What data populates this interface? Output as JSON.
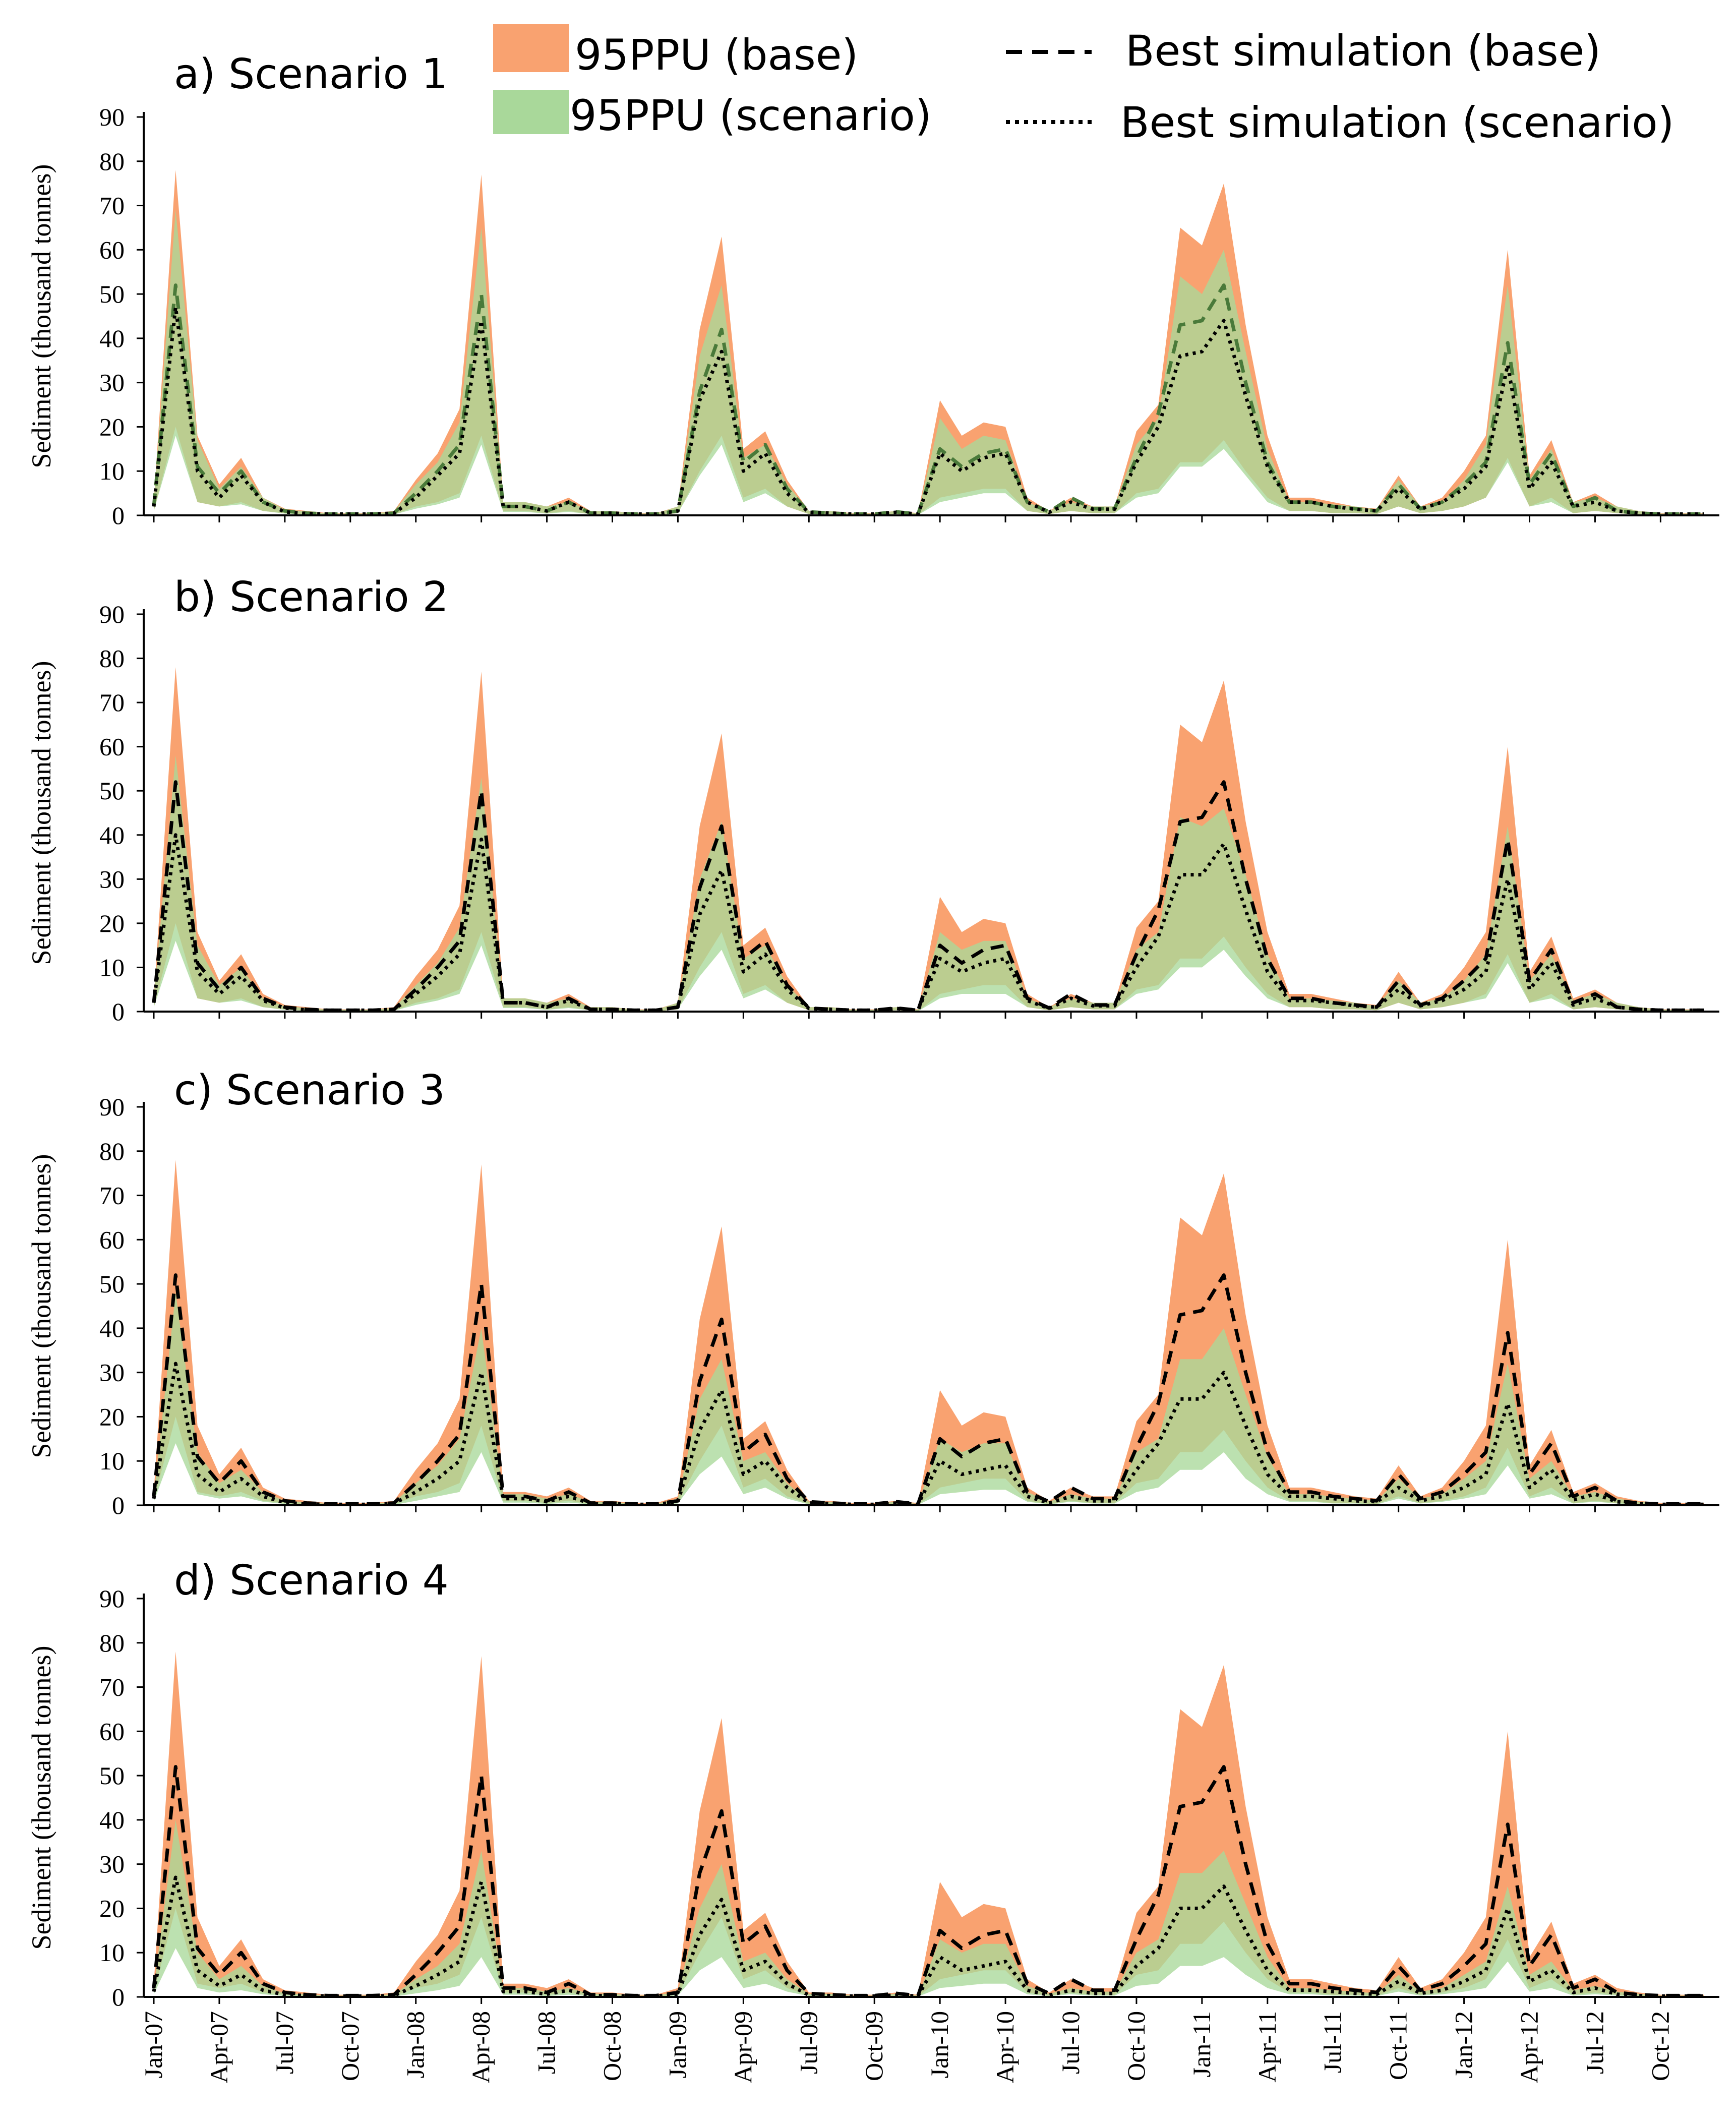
{
  "legend": {
    "ppu_base": "95PPU (base)",
    "ppu_scenario": "95PPU (scenario)",
    "best_base": "Best simulation (base)",
    "best_scenario": "Best simulation (scenario)"
  },
  "colors": {
    "ppu_base": "#f9a270",
    "ppu_scenario": "#a9d89a",
    "overlap": "#8da858",
    "line": "#000000",
    "best_base_scenario1": "#4a7a3a"
  },
  "chart_data": {
    "type": "area",
    "ylabel": "Sediment (thousand tonnes)",
    "ylim": [
      0,
      90
    ],
    "yticks": [
      0,
      10,
      20,
      30,
      40,
      50,
      60,
      70,
      80,
      90
    ],
    "months": 72,
    "start": "Jan-07",
    "xtick_labels": [
      "Jan-07",
      "Apr-07",
      "Jul-07",
      "Oct-07",
      "Jan-08",
      "Apr-08",
      "Jul-08",
      "Oct-08",
      "Jan-09",
      "Apr-09",
      "Jul-09",
      "Oct-09",
      "Jan-10",
      "Apr-10",
      "Jul-10",
      "Oct-10",
      "Jan-11",
      "Apr-11",
      "Jul-11",
      "Oct-11",
      "Jan-12",
      "Apr-12",
      "Jul-12",
      "Oct-12"
    ],
    "base": {
      "ppu_upper": [
        3,
        78,
        18,
        7,
        13,
        4,
        1.5,
        1,
        0.5,
        0.5,
        0.5,
        1,
        8,
        14,
        24,
        77,
        3,
        3,
        2,
        4,
        1,
        1,
        0.5,
        0.5,
        2,
        42,
        63,
        15,
        19,
        8,
        1,
        1,
        0.5,
        0.5,
        1,
        0.5,
        26,
        18,
        21,
        20,
        4,
        1,
        4,
        2,
        2,
        19,
        25,
        65,
        61,
        75,
        43,
        18,
        4,
        4,
        3,
        2,
        1.5,
        9,
        2,
        4,
        10,
        18,
        60,
        9,
        17,
        3,
        5,
        2,
        1,
        0.5,
        0.5,
        0.5
      ],
      "ppu_lower": [
        1,
        20,
        3,
        2,
        3,
        1,
        0.5,
        0.2,
        0.1,
        0.1,
        0.1,
        0.2,
        2,
        3,
        5,
        18,
        1,
        1,
        0.5,
        1,
        0.3,
        0.3,
        0.1,
        0.1,
        0.5,
        10,
        18,
        4,
        6,
        2,
        0.3,
        0.3,
        0.1,
        0.1,
        0.3,
        0.1,
        4,
        5,
        6,
        6,
        1,
        0.3,
        1,
        0.5,
        0.5,
        5,
        6,
        12,
        12,
        17,
        10,
        4,
        1,
        1,
        0.5,
        0.5,
        0.3,
        2,
        0.5,
        1,
        2,
        4,
        13,
        2,
        4,
        0.5,
        1,
        0.5,
        0.2,
        0.1,
        0.1,
        0.1
      ],
      "best": [
        2,
        52,
        11,
        5,
        10,
        3,
        1,
        0.5,
        0.3,
        0.3,
        0.3,
        0.5,
        5,
        10,
        16,
        50,
        2,
        2,
        1,
        3,
        0.5,
        0.5,
        0.3,
        0.3,
        1,
        28,
        42,
        12,
        16,
        6,
        0.8,
        0.5,
        0.3,
        0.3,
        0.8,
        0.3,
        15,
        11,
        14,
        15,
        3,
        0.8,
        4,
        1.5,
        1.5,
        13,
        23,
        43,
        44,
        52,
        30,
        12,
        3,
        3,
        2,
        1.5,
        1,
        7,
        1.5,
        3,
        7,
        12,
        39,
        7,
        14,
        2,
        4,
        1,
        0.5,
        0.3,
        0.3,
        0.3
      ]
    },
    "panels": [
      {
        "title": "a) Scenario 1",
        "scen_upper": [
          3,
          69,
          17,
          6,
          11,
          4,
          1.3,
          0.9,
          0.4,
          0.4,
          0.4,
          0.9,
          7,
          12,
          21,
          65,
          3,
          3,
          2,
          3,
          1,
          1,
          0.4,
          0.4,
          2,
          36,
          52,
          13,
          16,
          7,
          1,
          1,
          0.4,
          0.4,
          1,
          0.4,
          22,
          15,
          18,
          17,
          3,
          1,
          3,
          2,
          2,
          16,
          22,
          54,
          50,
          60,
          37,
          15,
          3,
          3,
          2.5,
          2,
          1.3,
          8,
          2,
          3,
          8,
          16,
          52,
          8,
          15,
          3,
          4,
          2,
          1,
          0.4,
          0.4,
          0.4
        ],
        "scen_lower": [
          1,
          18,
          3,
          2,
          2.5,
          1,
          0.4,
          0.2,
          0.1,
          0.1,
          0.1,
          0.2,
          1.5,
          2.5,
          4,
          16,
          0.8,
          0.8,
          0.4,
          0.8,
          0.3,
          0.3,
          0.1,
          0.1,
          0.5,
          9,
          16,
          3,
          5,
          2,
          0.3,
          0.3,
          0.1,
          0.1,
          0.3,
          0.1,
          3,
          4,
          5,
          5,
          1,
          0.3,
          1,
          0.5,
          0.5,
          4,
          5,
          11,
          11,
          15,
          9,
          3,
          1,
          1,
          0.5,
          0.5,
          0.3,
          2,
          0.5,
          1,
          2,
          4,
          12,
          2,
          3,
          0.5,
          1,
          0.5,
          0.2,
          0.1,
          0.1,
          0.1
        ],
        "best_scenario": [
          2,
          47,
          10,
          4,
          9,
          3,
          0.8,
          0.4,
          0.3,
          0.3,
          0.3,
          0.5,
          4,
          9,
          14,
          44,
          2,
          2,
          1,
          3,
          0.5,
          0.5,
          0.3,
          0.3,
          1,
          26,
          37,
          10,
          14,
          5,
          0.7,
          0.5,
          0.3,
          0.3,
          0.7,
          0.3,
          14,
          10,
          13,
          14,
          3,
          0.7,
          3,
          1.4,
          1.4,
          12,
          20,
          36,
          37,
          44,
          27,
          11,
          3,
          3,
          2,
          1.4,
          1,
          6,
          1.4,
          3,
          6,
          11,
          34,
          6,
          12,
          2,
          3,
          1,
          0.5,
          0.3,
          0.3,
          0.3
        ]
      },
      {
        "title": "b) Scenario 2",
        "scen_upper": [
          3,
          58,
          15,
          6,
          10,
          3,
          1.2,
          0.8,
          0.4,
          0.4,
          0.4,
          0.8,
          6,
          11,
          19,
          53,
          3,
          3,
          2,
          3,
          1,
          1,
          0.4,
          0.4,
          2,
          30,
          43,
          12,
          15,
          6,
          1,
          1,
          0.4,
          0.4,
          1,
          0.4,
          18,
          14,
          16,
          16,
          3,
          1,
          3,
          2,
          2,
          14,
          18,
          44,
          42,
          46,
          31,
          13,
          3,
          3,
          2.5,
          2,
          1.2,
          7,
          2,
          3,
          7,
          13,
          42,
          7,
          13,
          2.5,
          4,
          2,
          1,
          0.4,
          0.4,
          0.4
        ],
        "scen_lower": [
          1,
          16,
          3,
          2,
          2.5,
          1,
          0.4,
          0.2,
          0.1,
          0.1,
          0.1,
          0.2,
          1.5,
          2.5,
          4,
          15,
          0.8,
          0.8,
          0.4,
          0.8,
          0.3,
          0.3,
          0.1,
          0.1,
          0.5,
          8,
          14,
          3,
          5,
          2,
          0.3,
          0.3,
          0.1,
          0.1,
          0.3,
          0.1,
          3,
          4,
          4,
          4,
          1,
          0.3,
          1,
          0.5,
          0.5,
          4,
          5,
          10,
          10,
          14,
          8,
          3,
          1,
          1,
          0.5,
          0.5,
          0.3,
          2,
          0.5,
          1,
          2,
          3,
          11,
          2,
          3,
          0.5,
          1,
          0.5,
          0.2,
          0.1,
          0.1,
          0.1
        ],
        "best_scenario": [
          2,
          40,
          9,
          4,
          8,
          2.5,
          0.8,
          0.4,
          0.3,
          0.3,
          0.3,
          0.5,
          4,
          8,
          13,
          39,
          2,
          2,
          1,
          2.5,
          0.5,
          0.5,
          0.3,
          0.3,
          1,
          22,
          32,
          9,
          13,
          5,
          0.7,
          0.5,
          0.3,
          0.3,
          0.7,
          0.3,
          12,
          9,
          11,
          12,
          2.5,
          0.7,
          3,
          1.3,
          1.3,
          10,
          17,
          31,
          31,
          38,
          23,
          9,
          2.5,
          2.5,
          2,
          1.3,
          1,
          5,
          1.3,
          2.5,
          5,
          9,
          30,
          5,
          11,
          1.5,
          3,
          1,
          0.5,
          0.3,
          0.3,
          0.3
        ]
      },
      {
        "title": "c) Scenario 3",
        "scen_upper": [
          2,
          48,
          12,
          5,
          8,
          3,
          1,
          0.7,
          0.3,
          0.3,
          0.3,
          0.7,
          5,
          9,
          15,
          40,
          2.5,
          2.5,
          1.5,
          2.5,
          0.8,
          0.8,
          0.3,
          0.3,
          1.5,
          24,
          33,
          10,
          12,
          5,
          0.8,
          0.8,
          0.3,
          0.3,
          0.8,
          0.3,
          15,
          12,
          14,
          14,
          3,
          0.8,
          2.5,
          1.5,
          1.5,
          12,
          15,
          33,
          33,
          40,
          25,
          11,
          2.5,
          2.5,
          2,
          1.5,
          1,
          6,
          1.5,
          2.5,
          6,
          10,
          32,
          6,
          10,
          2,
          3,
          1.5,
          0.8,
          0.3,
          0.3,
          0.3
        ],
        "scen_lower": [
          0.8,
          14,
          2.5,
          1.5,
          2,
          0.8,
          0.3,
          0.1,
          0.1,
          0.1,
          0.1,
          0.1,
          1,
          2,
          3,
          12,
          0.6,
          0.6,
          0.3,
          0.6,
          0.2,
          0.2,
          0.1,
          0.1,
          0.4,
          7,
          11,
          2.5,
          4,
          1.5,
          0.2,
          0.2,
          0.1,
          0.1,
          0.2,
          0.1,
          2.5,
          3,
          3.5,
          3.5,
          0.8,
          0.2,
          0.8,
          0.4,
          0.4,
          3,
          4,
          8,
          8,
          12,
          6,
          2.5,
          0.8,
          0.8,
          0.4,
          0.4,
          0.2,
          1.5,
          0.4,
          0.8,
          1.5,
          2.5,
          9,
          1.5,
          2.5,
          0.4,
          0.8,
          0.4,
          0.1,
          0.1,
          0.1,
          0.1
        ],
        "best_scenario": [
          1.5,
          32,
          7,
          3,
          6,
          2,
          0.6,
          0.3,
          0.2,
          0.2,
          0.2,
          0.4,
          3,
          6,
          10,
          30,
          1.5,
          1.5,
          0.8,
          2,
          0.4,
          0.4,
          0.2,
          0.2,
          0.8,
          17,
          26,
          7,
          10,
          4,
          0.5,
          0.4,
          0.2,
          0.2,
          0.5,
          0.2,
          10,
          7,
          8,
          9,
          2,
          0.5,
          2,
          1,
          1,
          8,
          14,
          24,
          24,
          30,
          18,
          7,
          2,
          2,
          1.5,
          1,
          0.8,
          4,
          1,
          2,
          4,
          7,
          23,
          4,
          8,
          1.2,
          2.5,
          0.8,
          0.4,
          0.2,
          0.2,
          0.2
        ]
      },
      {
        "title": "d) Scenario 4",
        "scen_upper": [
          2,
          40,
          10,
          4,
          7,
          2.5,
          0.8,
          0.6,
          0.3,
          0.3,
          0.3,
          0.6,
          4,
          7,
          12,
          33,
          2,
          2,
          1.2,
          2,
          0.7,
          0.7,
          0.3,
          0.3,
          1.2,
          20,
          30,
          8,
          10,
          4,
          0.7,
          0.7,
          0.3,
          0.3,
          0.7,
          0.3,
          13,
          10,
          12,
          12,
          2.5,
          0.7,
          2,
          1.2,
          1.2,
          10,
          13,
          28,
          28,
          33,
          21,
          9,
          2,
          2,
          1.5,
          1.2,
          0.8,
          5,
          1.2,
          2,
          5,
          8,
          25,
          5,
          8,
          1.5,
          2.5,
          1.2,
          0.7,
          0.3,
          0.3,
          0.3
        ],
        "scen_lower": [
          0.6,
          11,
          2,
          1,
          1.5,
          0.6,
          0.2,
          0.1,
          0.1,
          0.1,
          0.1,
          0.1,
          0.8,
          1.5,
          2.5,
          9,
          0.5,
          0.5,
          0.2,
          0.5,
          0.2,
          0.2,
          0.1,
          0.1,
          0.3,
          6,
          9,
          2,
          3,
          1.2,
          0.2,
          0.2,
          0.1,
          0.1,
          0.2,
          0.1,
          2,
          2.5,
          3,
          3,
          0.6,
          0.2,
          0.6,
          0.3,
          0.3,
          2.5,
          3,
          7,
          7,
          9,
          5,
          2,
          0.6,
          0.6,
          0.3,
          0.3,
          0.2,
          1.2,
          0.3,
          0.6,
          1.2,
          2,
          8,
          1.2,
          2,
          0.3,
          0.6,
          0.3,
          0.1,
          0.1,
          0.1,
          0.1
        ],
        "best_scenario": [
          1.2,
          27,
          6,
          2.5,
          5,
          1.5,
          0.5,
          0.3,
          0.2,
          0.2,
          0.2,
          0.3,
          2.5,
          5,
          8,
          26,
          1.2,
          1.2,
          0.6,
          1.5,
          0.3,
          0.3,
          0.2,
          0.2,
          0.6,
          14,
          22,
          6,
          8,
          3,
          0.4,
          0.3,
          0.2,
          0.2,
          0.4,
          0.2,
          9,
          6,
          7,
          8,
          1.5,
          0.4,
          1.5,
          0.8,
          0.8,
          7,
          11,
          20,
          20,
          25,
          15,
          6,
          1.5,
          1.5,
          1.2,
          0.8,
          0.6,
          3.5,
          0.8,
          1.5,
          3.5,
          6,
          20,
          3.5,
          6,
          1,
          2,
          0.6,
          0.3,
          0.2,
          0.2,
          0.2
        ]
      }
    ]
  }
}
